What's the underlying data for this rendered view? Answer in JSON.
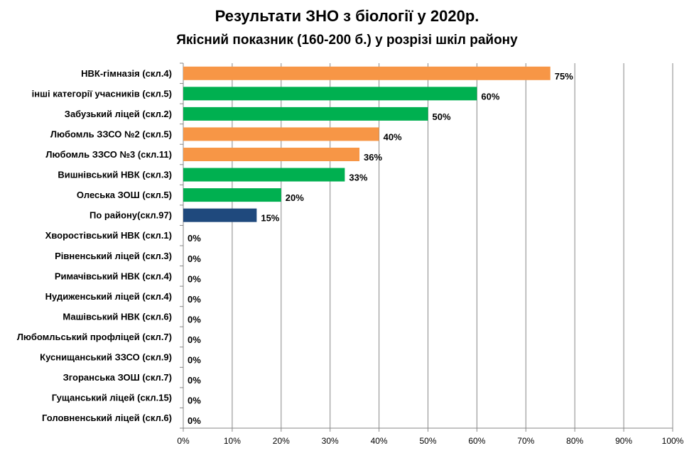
{
  "chart_data": {
    "type": "bar",
    "orientation": "horizontal",
    "title": "Результати  ЗНО з біології у 2020р.",
    "subtitle": "Якісний показник (160-200  б.) у розрізі шкіл району",
    "xlim": [
      0,
      100
    ],
    "x_ticks": [
      "0%",
      "10%",
      "20%",
      "30%",
      "40%",
      "50%",
      "60%",
      "70%",
      "80%",
      "90%",
      "100%"
    ],
    "grid": true,
    "legend": "none",
    "value_suffix": "%",
    "colors": {
      "orange": "#F79646",
      "green": "#00B050",
      "navy": "#1F497D"
    },
    "categories": [
      "НВК-гімназія (скл.4)",
      "інші категорії учасників (скл.5)",
      "Забузький ліцей (скл.2)",
      "Любомль ЗЗСО №2 (скл.5)",
      "Любомль ЗЗСО №3 (скл.11)",
      "Вишнівський НВК (скл.3)",
      "Олеська ЗОШ (скл.5)",
      "По району(скл.97)",
      "Хворостівський НВК (скл.1)",
      "Рівненський ліцей (скл.3)",
      "Римачівський НВК (скл.4)",
      "Нудиженський ліцей (скл.4)",
      "Машівський НВК (скл.6)",
      "Любомльський профліцей (скл.7)",
      "Куснищанський ЗЗСО (скл.9)",
      "Згоранська ЗОШ (скл.7)",
      "Гущанський ліцей (скл.15)",
      "Головненський ліцей (скл.6)"
    ],
    "values": [
      75,
      60,
      50,
      40,
      36,
      33,
      20,
      15,
      0,
      0,
      0,
      0,
      0,
      0,
      0,
      0,
      0,
      0
    ],
    "bar_colors": [
      "#F79646",
      "#00B050",
      "#00B050",
      "#F79646",
      "#F79646",
      "#00B050",
      "#00B050",
      "#1F497D",
      "#F79646",
      "#F79646",
      "#F79646",
      "#F79646",
      "#F79646",
      "#F79646",
      "#F79646",
      "#F79646",
      "#F79646",
      "#F79646"
    ]
  }
}
